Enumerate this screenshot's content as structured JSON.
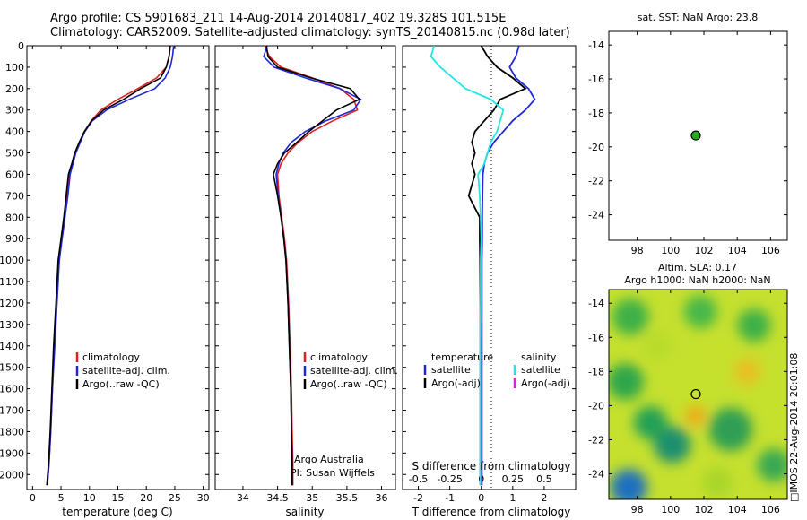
{
  "header": {
    "line1": "Argo profile: CS 5901683_211 14-Aug-2014 20140817_402 19.328S 101.515E",
    "line2": "Climatology: CARS2009. Satellite-adjusted climatology: synTS_20140815.nc (0.98d later)"
  },
  "stamp": "□IMOS 22-Aug-2014 20:01:08",
  "colors": {
    "climatology": "#e02020",
    "satellite": "#1f28d8",
    "argo": "#000000",
    "cyan": "#22e5e5",
    "magenta": "#e020e0",
    "argo_dot": "#22aa22"
  },
  "chart_data": [
    {
      "id": "temperature",
      "type": "line",
      "xlabel": "temperature (deg C)",
      "ylabel": "",
      "xlim": [
        -1,
        31
      ],
      "ylim": [
        2070,
        0
      ],
      "xticks": [
        0,
        5,
        10,
        15,
        20,
        25,
        30
      ],
      "yticks": [
        0,
        100,
        200,
        300,
        400,
        500,
        600,
        700,
        800,
        900,
        1000,
        1100,
        1200,
        1300,
        1400,
        1500,
        1600,
        1700,
        1800,
        1900,
        2000
      ],
      "legend": [
        "climatology",
        "satellite-adj. clim.",
        "Argo(..raw -QC)"
      ],
      "series": [
        {
          "name": "climatology",
          "color": "#e02020",
          "x": [
            24.2,
            24.0,
            23.5,
            21.8,
            18.5,
            15.0,
            12.0,
            10.3,
            9.2,
            8.3,
            7.5,
            7.0,
            6.5,
            6.1,
            5.6,
            5.1,
            4.6,
            4.2,
            3.8,
            3.5,
            3.2,
            2.9,
            2.6
          ],
          "y": [
            0,
            50,
            100,
            150,
            200,
            250,
            300,
            350,
            400,
            450,
            500,
            550,
            600,
            700,
            800,
            900,
            1000,
            1200,
            1400,
            1600,
            1800,
            1950,
            2050
          ]
        },
        {
          "name": "satellite-adj. clim.",
          "color": "#1f28d8",
          "x": [
            24.8,
            24.6,
            24.2,
            23.3,
            21.5,
            17.0,
            13.0,
            10.5,
            9.2,
            8.4,
            7.6,
            7.1,
            6.6,
            6.2,
            5.7,
            5.2,
            4.7,
            4.3,
            3.9,
            3.5,
            3.2,
            2.9,
            2.6
          ],
          "y": [
            0,
            50,
            100,
            150,
            200,
            250,
            300,
            350,
            400,
            450,
            500,
            550,
            600,
            700,
            800,
            900,
            1000,
            1200,
            1400,
            1600,
            1800,
            1950,
            2050
          ]
        },
        {
          "name": "Argo(..raw -QC)",
          "color": "#000000",
          "x": [
            24.2,
            24.0,
            23.5,
            22.5,
            19.0,
            16.0,
            12.5,
            10.4,
            9.1,
            8.2,
            7.4,
            6.9,
            6.3,
            5.9,
            5.5,
            5.0,
            4.5,
            4.1,
            3.7,
            3.4,
            3.1,
            2.8,
            2.5
          ],
          "y": [
            0,
            50,
            100,
            150,
            200,
            250,
            300,
            350,
            400,
            450,
            500,
            550,
            600,
            700,
            800,
            900,
            1000,
            1200,
            1400,
            1600,
            1800,
            1950,
            2050
          ]
        }
      ]
    },
    {
      "id": "salinity",
      "type": "line",
      "xlabel": "salinity",
      "ylabel": "",
      "xlim": [
        33.6,
        36.2
      ],
      "ylim": [
        2070,
        0
      ],
      "xticks": [
        34,
        34.5,
        35,
        35.5,
        36
      ],
      "xticklabels": [
        "34",
        "34.5",
        "35",
        "35.5",
        "36"
      ],
      "yticks": [
        0,
        100,
        200,
        300,
        400,
        500,
        600,
        700,
        800,
        900,
        1000,
        1100,
        1200,
        1300,
        1400,
        1500,
        1600,
        1700,
        1800,
        1900,
        2000
      ],
      "legend": [
        "climatology",
        "satellite-adj. clim.",
        "Argo(..raw -QC)"
      ],
      "annotations": [
        "Argo Australia",
        "PI: Susan Wijffels"
      ],
      "series": [
        {
          "name": "climatology",
          "color": "#e02020",
          "x": [
            34.32,
            34.38,
            34.55,
            35.0,
            35.4,
            35.6,
            35.65,
            35.3,
            35.0,
            34.8,
            34.65,
            34.55,
            34.5,
            34.52,
            34.56,
            34.6,
            34.63,
            34.66,
            34.68,
            34.7,
            34.71,
            34.72,
            34.72
          ],
          "y": [
            0,
            50,
            100,
            150,
            200,
            250,
            300,
            350,
            400,
            450,
            500,
            550,
            600,
            700,
            800,
            900,
            1000,
            1200,
            1400,
            1600,
            1800,
            1950,
            2050
          ]
        },
        {
          "name": "satellite-adj. clim.",
          "color": "#1f28d8",
          "x": [
            34.35,
            34.3,
            34.45,
            34.9,
            35.4,
            35.7,
            35.6,
            35.2,
            34.9,
            34.7,
            34.58,
            34.52,
            34.48,
            34.51,
            34.55,
            34.59,
            34.62,
            34.65,
            34.67,
            34.69,
            34.7,
            34.71,
            34.71
          ],
          "y": [
            0,
            50,
            100,
            150,
            200,
            250,
            300,
            350,
            400,
            450,
            500,
            550,
            600,
            700,
            800,
            900,
            1000,
            1200,
            1400,
            1600,
            1800,
            1950,
            2050
          ]
        },
        {
          "name": "Argo(..raw -QC)",
          "color": "#000000",
          "x": [
            34.34,
            34.36,
            34.5,
            34.98,
            35.55,
            35.68,
            35.35,
            35.15,
            34.95,
            34.78,
            34.6,
            34.5,
            34.44,
            34.5,
            34.55,
            34.59,
            34.62,
            34.65,
            34.67,
            34.69,
            34.7,
            34.71,
            34.71
          ],
          "y": [
            0,
            50,
            100,
            150,
            200,
            250,
            300,
            350,
            400,
            450,
            500,
            550,
            600,
            700,
            800,
            900,
            1000,
            1200,
            1400,
            1600,
            1800,
            1950,
            2050
          ]
        }
      ]
    },
    {
      "id": "differences",
      "type": "line",
      "xlabel": "T difference from climatology",
      "xlabel_top": "S difference from climatology",
      "xlim": [
        -2.5,
        3.0
      ],
      "ylim": [
        2070,
        0
      ],
      "xticks": [
        -2,
        -1,
        0,
        1,
        2
      ],
      "top_xticks": [
        -0.5,
        -0.25,
        0,
        0.25,
        0.5
      ],
      "top_xticklabels": [
        "-0.5",
        "-0.25",
        "0",
        "0.25",
        "0.5"
      ],
      "yticks": [
        0,
        100,
        200,
        300,
        400,
        500,
        600,
        700,
        800,
        900,
        1000,
        1100,
        1200,
        1300,
        1400,
        1500,
        1600,
        1700,
        1800,
        1900,
        2000
      ],
      "legend": {
        "temperature_title": "temperature",
        "salinity_title": "salinity",
        "items": [
          "satellite",
          "Argo(-adj)",
          "satellite",
          "Argo(-adj)"
        ]
      },
      "series": [
        {
          "name": "temperature satellite",
          "color": "#1f28d8",
          "x": [
            1.2,
            1.1,
            0.9,
            1.1,
            1.5,
            1.7,
            1.4,
            1.0,
            0.7,
            0.4,
            0.2,
            0.1,
            0.05,
            0.04,
            0.03,
            0.03,
            0.02,
            0.02,
            0.02,
            0.02,
            0.02,
            0.02
          ],
          "y": [
            0,
            50,
            100,
            150,
            200,
            250,
            300,
            350,
            400,
            450,
            500,
            550,
            600,
            700,
            800,
            900,
            1000,
            1200,
            1400,
            1600,
            1800,
            2050
          ]
        },
        {
          "name": "temperature Argo",
          "color": "#000000",
          "x": [
            0.0,
            0.2,
            0.5,
            1.0,
            1.4,
            0.6,
            0.4,
            0.1,
            -0.2,
            -0.3,
            -0.2,
            -0.3,
            -0.2,
            -0.4,
            -0.05,
            -0.05,
            -0.04,
            -0.03,
            -0.03,
            -0.03,
            -0.03,
            -0.03
          ],
          "y": [
            0,
            50,
            100,
            150,
            200,
            250,
            300,
            350,
            400,
            450,
            500,
            550,
            600,
            700,
            800,
            900,
            1000,
            1200,
            1400,
            1600,
            1800,
            2050
          ]
        },
        {
          "name": "salinity satellite",
          "color": "#22e5e5",
          "x": [
            -1.5,
            -1.6,
            -1.3,
            -0.9,
            -0.5,
            0.3,
            0.7,
            0.6,
            0.5,
            0.3,
            0.2,
            0.1,
            -0.1,
            -0.05,
            -0.02,
            0.0,
            -0.02,
            -0.02,
            -0.03,
            -0.03,
            -0.03,
            -0.03
          ],
          "y": [
            0,
            50,
            100,
            150,
            200,
            250,
            300,
            350,
            400,
            450,
            500,
            550,
            600,
            700,
            800,
            900,
            1000,
            1200,
            1400,
            1600,
            1800,
            2050
          ]
        }
      ]
    },
    {
      "id": "position_sst",
      "type": "scatter",
      "title": "sat. SST: NaN Argo: 23.8",
      "xlim": [
        96.3,
        107.0
      ],
      "ylim": [
        -25.5,
        -13.2
      ],
      "xticks": [
        98,
        100,
        102,
        104,
        106
      ],
      "yticks": [
        -14,
        -16,
        -18,
        -20,
        -22,
        -24
      ],
      "points": [
        {
          "x": 101.515,
          "y": -19.328
        }
      ]
    },
    {
      "id": "position_sla",
      "type": "heatmap",
      "title_line1": "Altim. SLA: 0.17",
      "title_line2": "Argo h1000: NaN h2000: NaN",
      "xlim": [
        96.3,
        107.0
      ],
      "ylim": [
        -25.5,
        -13.2
      ],
      "xticks": [
        98,
        100,
        102,
        104,
        106
      ],
      "yticks": [
        -14,
        -16,
        -18,
        -20,
        -22,
        -24
      ],
      "points": [
        {
          "x": 101.515,
          "y": -19.328
        }
      ],
      "blobs": [
        {
          "x": 97.5,
          "y": -24.8,
          "r": 1.1,
          "c": "#1f6fbf"
        },
        {
          "x": 100.1,
          "y": -22.3,
          "r": 1.1,
          "c": "#1f8f6f"
        },
        {
          "x": 98.8,
          "y": -21.0,
          "r": 1.0,
          "c": "#22a055"
        },
        {
          "x": 97.3,
          "y": -18.6,
          "r": 1.1,
          "c": "#2ea64c"
        },
        {
          "x": 97.6,
          "y": -14.8,
          "r": 1.1,
          "c": "#3cb046"
        },
        {
          "x": 103.6,
          "y": -21.4,
          "r": 1.3,
          "c": "#2e9f55"
        },
        {
          "x": 105.0,
          "y": -15.3,
          "r": 1.0,
          "c": "#3cb046"
        },
        {
          "x": 101.8,
          "y": -14.5,
          "r": 1.0,
          "c": "#46b84a"
        },
        {
          "x": 106.2,
          "y": -23.5,
          "r": 1.0,
          "c": "#39a852"
        },
        {
          "x": 101.5,
          "y": -20.6,
          "r": 0.6,
          "c": "#f2a818"
        },
        {
          "x": 104.6,
          "y": -18.0,
          "r": 0.8,
          "c": "#e8c020"
        },
        {
          "x": 102.8,
          "y": -24.5,
          "r": 0.9,
          "c": "#a8d62a"
        },
        {
          "x": 99.2,
          "y": -16.5,
          "r": 0.9,
          "c": "#b8dc2a"
        },
        {
          "x": 103.2,
          "y": -16.8,
          "r": 0.7,
          "c": "#c8e02c"
        }
      ]
    }
  ]
}
